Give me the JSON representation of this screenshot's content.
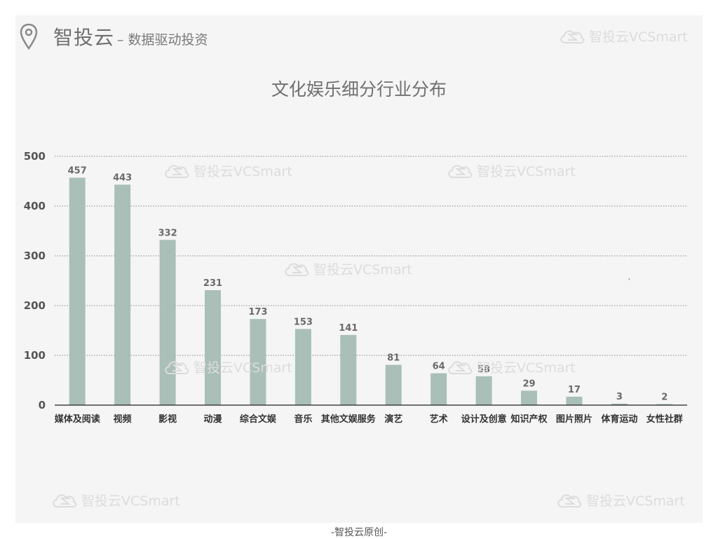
{
  "header": {
    "brand": "智投云",
    "slogan": "– 数据驱动投资",
    "watermark": "智投云VCSmart"
  },
  "footer": {
    "text": "-智投云原创-"
  },
  "colors": {
    "bar": "#a9bfb7",
    "panel": "#f5f5f5",
    "grid": "#888888"
  },
  "chart_data": {
    "type": "bar",
    "title": "文化娱乐细分行业分布",
    "xlabel": "",
    "ylabel": "",
    "ylim": [
      0,
      500
    ],
    "yticks": [
      0,
      100,
      200,
      300,
      400,
      500
    ],
    "grid": true,
    "categories": [
      "媒体及阅读",
      "视频",
      "影视",
      "动漫",
      "综合文娱",
      "音乐",
      "其他文娱服务",
      "演艺",
      "艺术",
      "设计及创意",
      "知识产权",
      "图片照片",
      "体育运动",
      "女性社群"
    ],
    "values": [
      457,
      443,
      332,
      231,
      173,
      153,
      141,
      81,
      64,
      58,
      29,
      17,
      3,
      2
    ]
  }
}
